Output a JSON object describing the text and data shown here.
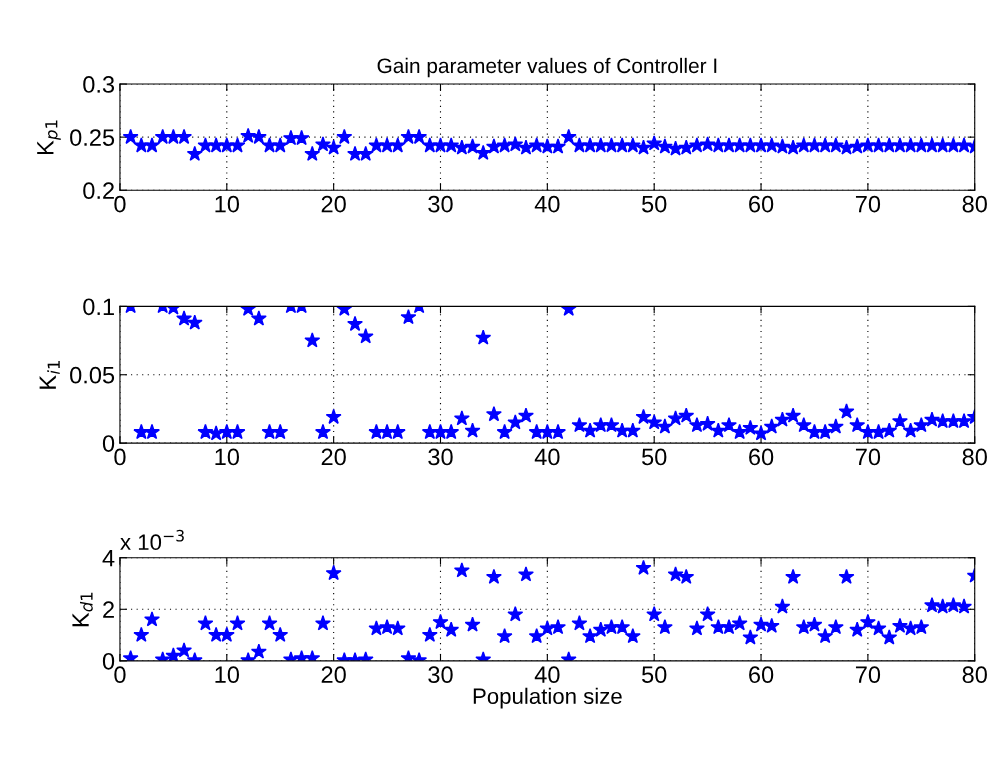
{
  "chart_data": [
    {
      "type": "scatter",
      "title": "Gain parameter values of Controller I",
      "ylabel": "K$_{p1}$",
      "marker": "star",
      "grid": true,
      "legend": false,
      "x": [
        1,
        2,
        3,
        4,
        5,
        6,
        7,
        8,
        9,
        10,
        11,
        12,
        13,
        14,
        15,
        16,
        17,
        18,
        19,
        20,
        21,
        22,
        23,
        24,
        25,
        26,
        27,
        28,
        29,
        30,
        31,
        32,
        33,
        34,
        35,
        36,
        37,
        38,
        39,
        40,
        41,
        42,
        43,
        44,
        45,
        46,
        47,
        48,
        49,
        50,
        51,
        52,
        53,
        54,
        55,
        56,
        57,
        58,
        59,
        60,
        61,
        62,
        63,
        64,
        65,
        66,
        67,
        68,
        69,
        70,
        71,
        72,
        73,
        74,
        75,
        76,
        77,
        78,
        79,
        80
      ],
      "series": [
        {
          "color": "#0000ff",
          "values": [
            0.25,
            0.242,
            0.242,
            0.25,
            0.25,
            0.25,
            0.234,
            0.242,
            0.242,
            0.242,
            0.242,
            0.251,
            0.25,
            0.242,
            0.242,
            0.249,
            0.249,
            0.234,
            0.243,
            0.24,
            0.25,
            0.234,
            0.234,
            0.242,
            0.242,
            0.242,
            0.25,
            0.25,
            0.242,
            0.242,
            0.242,
            0.24,
            0.241,
            0.235,
            0.241,
            0.242,
            0.243,
            0.24,
            0.242,
            0.241,
            0.241,
            0.25,
            0.242,
            0.242,
            0.242,
            0.242,
            0.242,
            0.242,
            0.24,
            0.244,
            0.241,
            0.239,
            0.24,
            0.242,
            0.243,
            0.242,
            0.242,
            0.242,
            0.242,
            0.242,
            0.242,
            0.241,
            0.24,
            0.242,
            0.242,
            0.242,
            0.242,
            0.24,
            0.241,
            0.242,
            0.242,
            0.242,
            0.242,
            0.242,
            0.242,
            0.242,
            0.242,
            0.242,
            0.242,
            0.241
          ]
        }
      ],
      "xlim": [
        0,
        80
      ],
      "xticks": [
        0,
        10,
        20,
        30,
        40,
        50,
        60,
        70,
        80
      ],
      "ylim": [
        0.2,
        0.3
      ],
      "yticks": [
        0.2,
        0.25,
        0.3
      ]
    },
    {
      "type": "scatter",
      "ylabel": "K$_{i1}$",
      "marker": "star",
      "grid": true,
      "legend": false,
      "x": [
        1,
        2,
        3,
        4,
        5,
        6,
        7,
        8,
        9,
        10,
        11,
        12,
        13,
        14,
        15,
        16,
        17,
        18,
        19,
        20,
        21,
        22,
        23,
        24,
        25,
        26,
        27,
        28,
        29,
        30,
        31,
        32,
        33,
        34,
        35,
        36,
        37,
        38,
        39,
        40,
        41,
        42,
        43,
        44,
        45,
        46,
        47,
        48,
        49,
        50,
        51,
        52,
        53,
        54,
        55,
        56,
        57,
        58,
        59,
        60,
        61,
        62,
        63,
        64,
        65,
        66,
        67,
        68,
        69,
        70,
        71,
        72,
        73,
        74,
        75,
        76,
        77,
        78,
        79,
        80
      ],
      "series": [
        {
          "color": "#0000ff",
          "values": [
            0.1,
            0.008,
            0.008,
            0.1,
            0.099,
            0.091,
            0.088,
            0.008,
            0.007,
            0.008,
            0.008,
            0.098,
            0.091,
            0.008,
            0.008,
            0.1,
            0.1,
            0.075,
            0.008,
            0.019,
            0.098,
            0.087,
            0.078,
            0.008,
            0.008,
            0.008,
            0.092,
            0.1,
            0.008,
            0.008,
            0.008,
            0.018,
            0.009,
            0.077,
            0.021,
            0.008,
            0.015,
            0.02,
            0.008,
            0.008,
            0.008,
            0.098,
            0.013,
            0.009,
            0.013,
            0.013,
            0.009,
            0.009,
            0.019,
            0.015,
            0.012,
            0.018,
            0.02,
            0.013,
            0.014,
            0.009,
            0.013,
            0.008,
            0.011,
            0.007,
            0.012,
            0.017,
            0.02,
            0.013,
            0.008,
            0.008,
            0.012,
            0.023,
            0.013,
            0.008,
            0.008,
            0.009,
            0.016,
            0.009,
            0.013,
            0.017,
            0.016,
            0.016,
            0.016,
            0.019
          ]
        }
      ],
      "xlim": [
        0,
        80
      ],
      "xticks": [
        0,
        10,
        20,
        30,
        40,
        50,
        60,
        70,
        80
      ],
      "ylim": [
        0,
        0.1
      ],
      "yticks": [
        0,
        0.05,
        0.1
      ]
    },
    {
      "type": "scatter",
      "ylabel": "K$_{d1}$",
      "xlabel": "Population size",
      "annotations": [
        "x 10$^{−3}$"
      ],
      "marker": "star",
      "grid": true,
      "legend": false,
      "x": [
        1,
        2,
        3,
        4,
        5,
        6,
        7,
        8,
        9,
        10,
        11,
        12,
        13,
        14,
        15,
        16,
        17,
        18,
        19,
        20,
        21,
        22,
        23,
        24,
        25,
        26,
        27,
        28,
        29,
        30,
        31,
        32,
        33,
        34,
        35,
        36,
        37,
        38,
        39,
        40,
        41,
        42,
        43,
        44,
        45,
        46,
        47,
        48,
        49,
        50,
        51,
        52,
        53,
        54,
        55,
        56,
        57,
        58,
        59,
        60,
        61,
        62,
        63,
        64,
        65,
        66,
        67,
        68,
        69,
        70,
        71,
        72,
        73,
        74,
        75,
        76,
        77,
        78,
        79,
        80
      ],
      "series": [
        {
          "color": "#0000ff",
          "values": [
            0.1,
            1.0,
            1.6,
            0.05,
            0.2,
            0.4,
            0.02,
            1.45,
            1.0,
            1.0,
            1.45,
            0.02,
            0.35,
            1.45,
            1.0,
            0.05,
            0.1,
            0.1,
            1.45,
            3.4,
            0.02,
            0.02,
            0.05,
            1.25,
            1.3,
            1.25,
            0.1,
            0.02,
            1.0,
            1.5,
            1.2,
            3.5,
            1.4,
            0.05,
            3.25,
            0.95,
            1.8,
            3.35,
            0.95,
            1.25,
            1.3,
            0.05,
            1.45,
            0.95,
            1.2,
            1.3,
            1.3,
            0.95,
            3.6,
            1.8,
            1.3,
            3.35,
            3.25,
            1.25,
            1.8,
            1.3,
            1.3,
            1.45,
            0.9,
            1.4,
            1.35,
            2.1,
            3.25,
            1.3,
            1.4,
            0.95,
            1.3,
            3.25,
            1.2,
            1.5,
            1.25,
            0.9,
            1.35,
            1.25,
            1.3,
            2.15,
            2.1,
            2.15,
            2.1,
            3.3
          ]
        }
      ],
      "xlim": [
        0,
        80
      ],
      "xticks": [
        0,
        10,
        20,
        30,
        40,
        50,
        60,
        70,
        80
      ],
      "ylim": [
        0,
        4
      ],
      "yticks": [
        0,
        2,
        4
      ]
    }
  ]
}
